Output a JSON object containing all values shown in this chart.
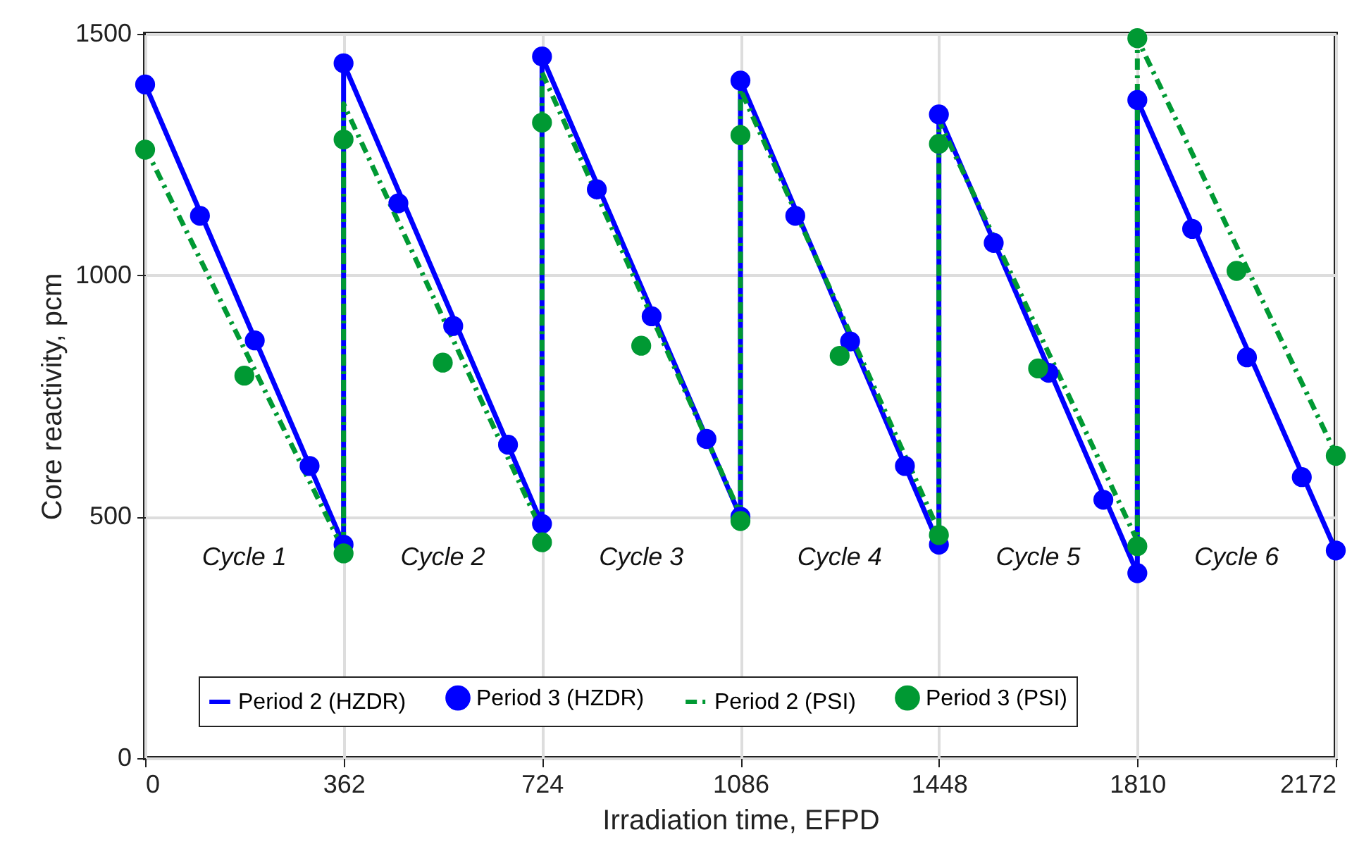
{
  "chart_data": {
    "type": "line",
    "xlabel": "Irradiation time, EFPD",
    "ylabel": "Core reactivity, pcm",
    "xlim": [
      0,
      2172
    ],
    "xticks": [
      0,
      362,
      724,
      1086,
      1448,
      1810,
      2172
    ],
    "ylim": [
      0,
      1500
    ],
    "yticks": [
      0,
      500,
      1000,
      1500
    ],
    "grid": true,
    "legend": "bottom",
    "series": [
      {
        "name": "Period 2 (HZDR)",
        "type": "line",
        "color": "#0000ff",
        "line_style": "solid",
        "marker": "none",
        "x": [
          0,
          362,
          362,
          724,
          724,
          1086,
          1086,
          1448,
          1448,
          1810,
          1810,
          2172
        ],
        "values": [
          1395,
          442,
          1439,
          485,
          1453,
          500,
          1403,
          442,
          1333,
          383,
          1363,
          430
        ]
      },
      {
        "name": "Period 3 (HZDR)",
        "type": "scatter",
        "color": "#0000ff",
        "marker": "circle",
        "x": [
          0,
          100,
          200,
          300,
          362,
          362,
          462,
          562,
          662,
          724,
          724,
          824,
          924,
          1024,
          1086,
          1086,
          1186,
          1286,
          1386,
          1448,
          1448,
          1548,
          1648,
          1748,
          1810,
          1810,
          1910,
          2010,
          2110,
          2172
        ],
        "values": [
          1395,
          1123,
          865,
          605,
          442,
          1439,
          1149,
          895,
          649,
          485,
          1453,
          1178,
          915,
          661,
          500,
          1403,
          1123,
          863,
          605,
          442,
          1333,
          1067,
          798,
          535,
          383,
          1363,
          1096,
          830,
          582,
          430
        ]
      },
      {
        "name": "Period 2 (PSI)",
        "type": "line",
        "color": "#009933",
        "line_style": "dashed",
        "marker": "none",
        "x": [
          0,
          362,
          362,
          724,
          724,
          1086,
          1086,
          1448,
          1448,
          1810,
          1810,
          2172
        ],
        "values": [
          1265,
          430,
          1355,
          470,
          1420,
          505,
          1385,
          470,
          1320,
          450,
          1490,
          630
        ]
      },
      {
        "name": "Period 3 (PSI)",
        "type": "scatter",
        "color": "#009933",
        "marker": "circle",
        "x": [
          0,
          181,
          362,
          362,
          543,
          724,
          724,
          905,
          1086,
          1086,
          1267,
          1448,
          1448,
          1629,
          1810,
          1810,
          1991,
          2172
        ],
        "values": [
          1260,
          792,
          424,
          1281,
          819,
          447,
          1316,
          854,
          491,
          1290,
          833,
          462,
          1272,
          807,
          439,
          1491,
          1009,
          626
        ]
      }
    ],
    "annotations": [
      "Cycle 1",
      "Cycle 2",
      "Cycle 3",
      "Cycle 4",
      "Cycle 5",
      "Cycle 6"
    ]
  }
}
